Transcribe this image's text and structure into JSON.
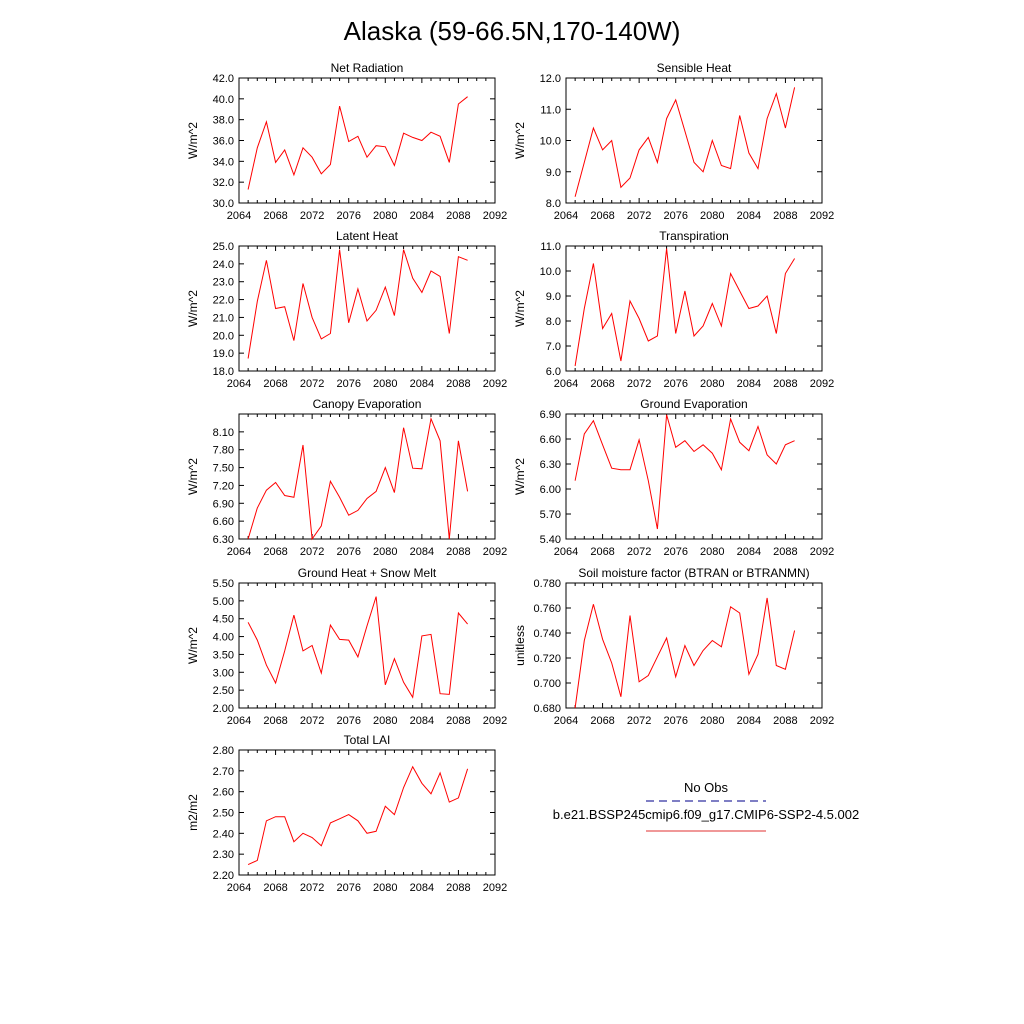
{
  "figure": {
    "title": "Alaska (59-66.5N,170-140W)"
  },
  "legend": {
    "items": [
      {
        "label": "No Obs",
        "color": "#3030a0",
        "style": "dashed"
      },
      {
        "label": "b.e21.BSSP245cmip6.f09_g17.CMIP6-SSP2-4.5.002",
        "color": "#e03030",
        "style": "solid"
      }
    ]
  },
  "chart_data": [
    {
      "type": "line",
      "title": "Net Radiation",
      "ylabel": "W/m^2",
      "xlim": [
        2064,
        2092
      ],
      "ylim": [
        30.0,
        42.0
      ],
      "xticks": [
        2064,
        2068,
        2072,
        2076,
        2080,
        2084,
        2088,
        2092
      ],
      "yticks": [
        "30.0",
        "32.0",
        "34.0",
        "36.0",
        "38.0",
        "40.0",
        "42.0"
      ],
      "x": [
        2065,
        2066,
        2067,
        2068,
        2069,
        2070,
        2071,
        2072,
        2073,
        2074,
        2075,
        2076,
        2077,
        2078,
        2079,
        2080,
        2081,
        2082,
        2083,
        2084,
        2085,
        2086,
        2087,
        2088,
        2089
      ],
      "series": [
        {
          "color": "#ff0000",
          "values": [
            31.3,
            35.3,
            37.8,
            33.9,
            35.1,
            32.7,
            35.3,
            34.4,
            32.8,
            33.7,
            39.3,
            35.9,
            36.4,
            34.4,
            35.5,
            35.4,
            33.6,
            36.7,
            36.3,
            36.0,
            36.8,
            36.4,
            33.9,
            39.5,
            40.2
          ]
        }
      ]
    },
    {
      "type": "line",
      "title": "Sensible Heat",
      "ylabel": "W/m^2",
      "xlim": [
        2064,
        2092
      ],
      "ylim": [
        8.0,
        12.0
      ],
      "xticks": [
        2064,
        2068,
        2072,
        2076,
        2080,
        2084,
        2088,
        2092
      ],
      "yticks": [
        "8.0",
        "9.0",
        "10.0",
        "11.0",
        "12.0"
      ],
      "x": [
        2065,
        2066,
        2067,
        2068,
        2069,
        2070,
        2071,
        2072,
        2073,
        2074,
        2075,
        2076,
        2077,
        2078,
        2079,
        2080,
        2081,
        2082,
        2083,
        2084,
        2085,
        2086,
        2087,
        2088,
        2089
      ],
      "series": [
        {
          "color": "#ff0000",
          "values": [
            8.2,
            9.3,
            10.4,
            9.7,
            10.0,
            8.5,
            8.8,
            9.7,
            10.1,
            9.3,
            10.7,
            11.3,
            10.3,
            9.3,
            9.0,
            10.0,
            9.2,
            9.1,
            10.8,
            9.6,
            9.1,
            10.7,
            11.5,
            10.4,
            11.7
          ]
        }
      ]
    },
    {
      "type": "line",
      "title": "Latent Heat",
      "ylabel": "W/m^2",
      "xlim": [
        2064,
        2092
      ],
      "ylim": [
        18.0,
        25.0
      ],
      "xticks": [
        2064,
        2068,
        2072,
        2076,
        2080,
        2084,
        2088,
        2092
      ],
      "yticks": [
        "18.0",
        "19.0",
        "20.0",
        "21.0",
        "22.0",
        "23.0",
        "24.0",
        "25.0"
      ],
      "x": [
        2065,
        2066,
        2067,
        2068,
        2069,
        2070,
        2071,
        2072,
        2073,
        2074,
        2075,
        2076,
        2077,
        2078,
        2079,
        2080,
        2081,
        2082,
        2083,
        2084,
        2085,
        2086,
        2087,
        2088,
        2089
      ],
      "series": [
        {
          "color": "#ff0000",
          "values": [
            18.7,
            21.9,
            24.2,
            21.5,
            21.6,
            19.7,
            22.9,
            21.0,
            19.8,
            20.1,
            24.8,
            20.7,
            22.6,
            20.8,
            21.4,
            22.7,
            21.1,
            24.8,
            23.2,
            22.4,
            23.6,
            23.3,
            20.1,
            24.4,
            24.2
          ]
        }
      ]
    },
    {
      "type": "line",
      "title": "Transpiration",
      "ylabel": "W/m^2",
      "xlim": [
        2064,
        2092
      ],
      "ylim": [
        6.0,
        11.0
      ],
      "xticks": [
        2064,
        2068,
        2072,
        2076,
        2080,
        2084,
        2088,
        2092
      ],
      "yticks": [
        "6.0",
        "7.0",
        "8.0",
        "9.0",
        "10.0",
        "11.0"
      ],
      "x": [
        2065,
        2066,
        2067,
        2068,
        2069,
        2070,
        2071,
        2072,
        2073,
        2074,
        2075,
        2076,
        2077,
        2078,
        2079,
        2080,
        2081,
        2082,
        2083,
        2084,
        2085,
        2086,
        2087,
        2088,
        2089
      ],
      "series": [
        {
          "color": "#ff0000",
          "values": [
            6.2,
            8.5,
            10.3,
            7.7,
            8.3,
            6.4,
            8.8,
            8.1,
            7.2,
            7.4,
            10.9,
            7.5,
            9.2,
            7.4,
            7.8,
            8.7,
            7.8,
            9.9,
            9.2,
            8.5,
            8.6,
            9.0,
            7.5,
            9.9,
            10.5
          ]
        }
      ]
    },
    {
      "type": "line",
      "title": "Canopy Evaporation",
      "ylabel": "W/m^2",
      "xlim": [
        2064,
        2092
      ],
      "ylim": [
        6.3,
        8.4
      ],
      "xticks": [
        2064,
        2068,
        2072,
        2076,
        2080,
        2084,
        2088,
        2092
      ],
      "yticks": [
        "6.30",
        "6.60",
        "6.90",
        "7.20",
        "7.50",
        "7.80",
        "8.10"
      ],
      "x": [
        2065,
        2066,
        2067,
        2068,
        2069,
        2070,
        2071,
        2072,
        2073,
        2074,
        2075,
        2076,
        2077,
        2078,
        2079,
        2080,
        2081,
        2082,
        2083,
        2084,
        2085,
        2086,
        2087,
        2088,
        2089
      ],
      "series": [
        {
          "color": "#ff0000",
          "values": [
            6.3,
            6.82,
            7.12,
            7.25,
            7.03,
            7.0,
            7.88,
            6.3,
            6.52,
            7.27,
            7.0,
            6.7,
            6.78,
            6.98,
            7.1,
            7.5,
            7.08,
            8.17,
            7.49,
            7.48,
            8.32,
            7.95,
            6.3,
            7.95,
            7.1
          ]
        }
      ]
    },
    {
      "type": "line",
      "title": "Ground Evaporation",
      "ylabel": "W/m^2",
      "xlim": [
        2064,
        2092
      ],
      "ylim": [
        5.4,
        6.9
      ],
      "xticks": [
        2064,
        2068,
        2072,
        2076,
        2080,
        2084,
        2088,
        2092
      ],
      "yticks": [
        "5.40",
        "5.70",
        "6.00",
        "6.30",
        "6.60",
        "6.90"
      ],
      "x": [
        2065,
        2066,
        2067,
        2068,
        2069,
        2070,
        2071,
        2072,
        2073,
        2074,
        2075,
        2076,
        2077,
        2078,
        2079,
        2080,
        2081,
        2082,
        2083,
        2084,
        2085,
        2086,
        2087,
        2088,
        2089
      ],
      "series": [
        {
          "color": "#ff0000",
          "values": [
            6.1,
            6.66,
            6.82,
            6.53,
            6.25,
            6.23,
            6.23,
            6.59,
            6.1,
            5.52,
            6.89,
            6.5,
            6.58,
            6.45,
            6.53,
            6.43,
            6.23,
            6.84,
            6.56,
            6.46,
            6.75,
            6.41,
            6.3,
            6.53,
            6.58
          ]
        }
      ]
    },
    {
      "type": "line",
      "title": "Ground Heat + Snow Melt",
      "ylabel": "W/m^2",
      "xlim": [
        2064,
        2092
      ],
      "ylim": [
        2.0,
        5.5
      ],
      "xticks": [
        2064,
        2068,
        2072,
        2076,
        2080,
        2084,
        2088,
        2092
      ],
      "yticks": [
        "2.00",
        "2.50",
        "3.00",
        "3.50",
        "4.00",
        "4.50",
        "5.00",
        "5.50"
      ],
      "x": [
        2065,
        2066,
        2067,
        2068,
        2069,
        2070,
        2071,
        2072,
        2073,
        2074,
        2075,
        2076,
        2077,
        2078,
        2079,
        2080,
        2081,
        2082,
        2083,
        2084,
        2085,
        2086,
        2087,
        2088,
        2089
      ],
      "series": [
        {
          "color": "#ff0000",
          "values": [
            4.4,
            3.9,
            3.2,
            2.7,
            3.6,
            4.6,
            3.6,
            3.75,
            2.98,
            4.32,
            3.92,
            3.9,
            3.43,
            4.3,
            5.12,
            2.65,
            3.38,
            2.72,
            2.3,
            4.02,
            4.06,
            2.4,
            2.38,
            4.66,
            4.35
          ]
        }
      ]
    },
    {
      "type": "line",
      "title": "Soil moisture factor (BTRAN or BTRANMN)",
      "ylabel": "unitless",
      "xlim": [
        2064,
        2092
      ],
      "ylim": [
        0.68,
        0.78
      ],
      "xticks": [
        2064,
        2068,
        2072,
        2076,
        2080,
        2084,
        2088,
        2092
      ],
      "yticks": [
        "0.680",
        "0.700",
        "0.720",
        "0.740",
        "0.760",
        "0.780"
      ],
      "x": [
        2065,
        2066,
        2067,
        2068,
        2069,
        2070,
        2071,
        2072,
        2073,
        2074,
        2075,
        2076,
        2077,
        2078,
        2079,
        2080,
        2081,
        2082,
        2083,
        2084,
        2085,
        2086,
        2087,
        2088,
        2089
      ],
      "series": [
        {
          "color": "#ff0000",
          "values": [
            0.68,
            0.734,
            0.763,
            0.735,
            0.716,
            0.689,
            0.754,
            0.701,
            0.706,
            0.721,
            0.736,
            0.705,
            0.73,
            0.714,
            0.726,
            0.734,
            0.729,
            0.761,
            0.756,
            0.707,
            0.723,
            0.768,
            0.714,
            0.711,
            0.742
          ]
        }
      ]
    },
    {
      "type": "line",
      "title": "Total LAI",
      "ylabel": "m2/m2",
      "xlim": [
        2064,
        2092
      ],
      "ylim": [
        2.2,
        2.8
      ],
      "xticks": [
        2064,
        2068,
        2072,
        2076,
        2080,
        2084,
        2088,
        2092
      ],
      "yticks": [
        "2.20",
        "2.30",
        "2.40",
        "2.50",
        "2.60",
        "2.70",
        "2.80"
      ],
      "x": [
        2065,
        2066,
        2067,
        2068,
        2069,
        2070,
        2071,
        2072,
        2073,
        2074,
        2075,
        2076,
        2077,
        2078,
        2079,
        2080,
        2081,
        2082,
        2083,
        2084,
        2085,
        2086,
        2087,
        2088,
        2089
      ],
      "series": [
        {
          "color": "#ff0000",
          "values": [
            2.25,
            2.27,
            2.46,
            2.48,
            2.48,
            2.36,
            2.4,
            2.38,
            2.34,
            2.45,
            2.47,
            2.49,
            2.46,
            2.4,
            2.41,
            2.53,
            2.49,
            2.62,
            2.72,
            2.64,
            2.59,
            2.69,
            2.55,
            2.57,
            2.71
          ]
        }
      ]
    }
  ]
}
